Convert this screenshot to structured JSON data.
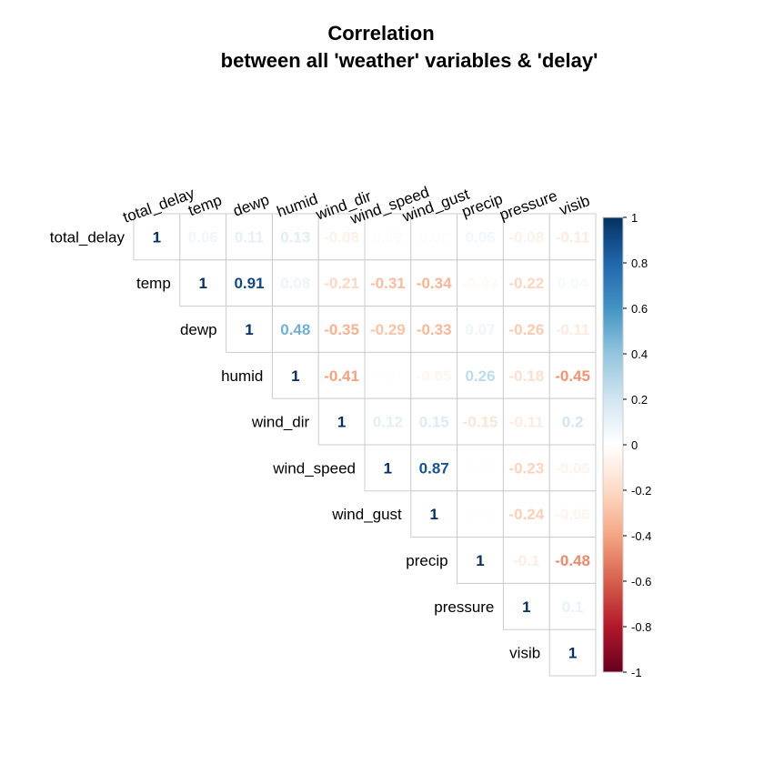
{
  "chart_data": {
    "type": "heatmap",
    "layout": "upper-triangle",
    "title": "Correlation",
    "subtitle": "between all 'weather' variables & 'delay'",
    "variables": [
      "total_delay",
      "temp",
      "dewp",
      "humid",
      "wind_dir",
      "wind_speed",
      "wind_gust",
      "precip",
      "pressure",
      "visib"
    ],
    "matrix": [
      [
        1,
        0.06,
        0.11,
        0.13,
        -0.08,
        0.02,
        0.02,
        0.06,
        -0.08,
        -0.11
      ],
      [
        null,
        1,
        0.91,
        0.08,
        -0.21,
        -0.31,
        -0.34,
        -0.03,
        -0.22,
        0.04
      ],
      [
        null,
        null,
        1,
        0.48,
        -0.35,
        -0.29,
        -0.33,
        0.07,
        -0.26,
        -0.11
      ],
      [
        null,
        null,
        null,
        1,
        -0.41,
        0.01,
        -0.05,
        0.26,
        -0.18,
        -0.45
      ],
      [
        null,
        null,
        null,
        null,
        1,
        0.12,
        0.15,
        -0.15,
        -0.11,
        0.2
      ],
      [
        null,
        null,
        null,
        null,
        null,
        1,
        0.87,
        0.01,
        -0.23,
        -0.06
      ],
      [
        null,
        null,
        null,
        null,
        null,
        null,
        1,
        0.01,
        -0.24,
        -0.06
      ],
      [
        null,
        null,
        null,
        null,
        null,
        null,
        null,
        1,
        -0.1,
        -0.48
      ],
      [
        null,
        null,
        null,
        null,
        null,
        null,
        null,
        null,
        1,
        0.1
      ],
      [
        null,
        null,
        null,
        null,
        null,
        null,
        null,
        null,
        null,
        1
      ]
    ],
    "colorbar": {
      "range": [
        -1,
        1
      ],
      "ticks": [
        1,
        0.8,
        0.6,
        0.4,
        0.2,
        0,
        -0.2,
        -0.4,
        -0.6,
        -0.8,
        -1
      ],
      "colors": {
        "-1": "#67001f",
        "-0.8": "#b2182b",
        "-0.6": "#d6604d",
        "-0.4": "#f4a582",
        "-0.2": "#fddbc7",
        "0": "#ffffff",
        "0.2": "#d1e5f0",
        "0.4": "#92c5de",
        "0.6": "#4393c3",
        "0.8": "#2166ac",
        "1": "#053061"
      }
    },
    "grid_color": "#cccccc"
  }
}
